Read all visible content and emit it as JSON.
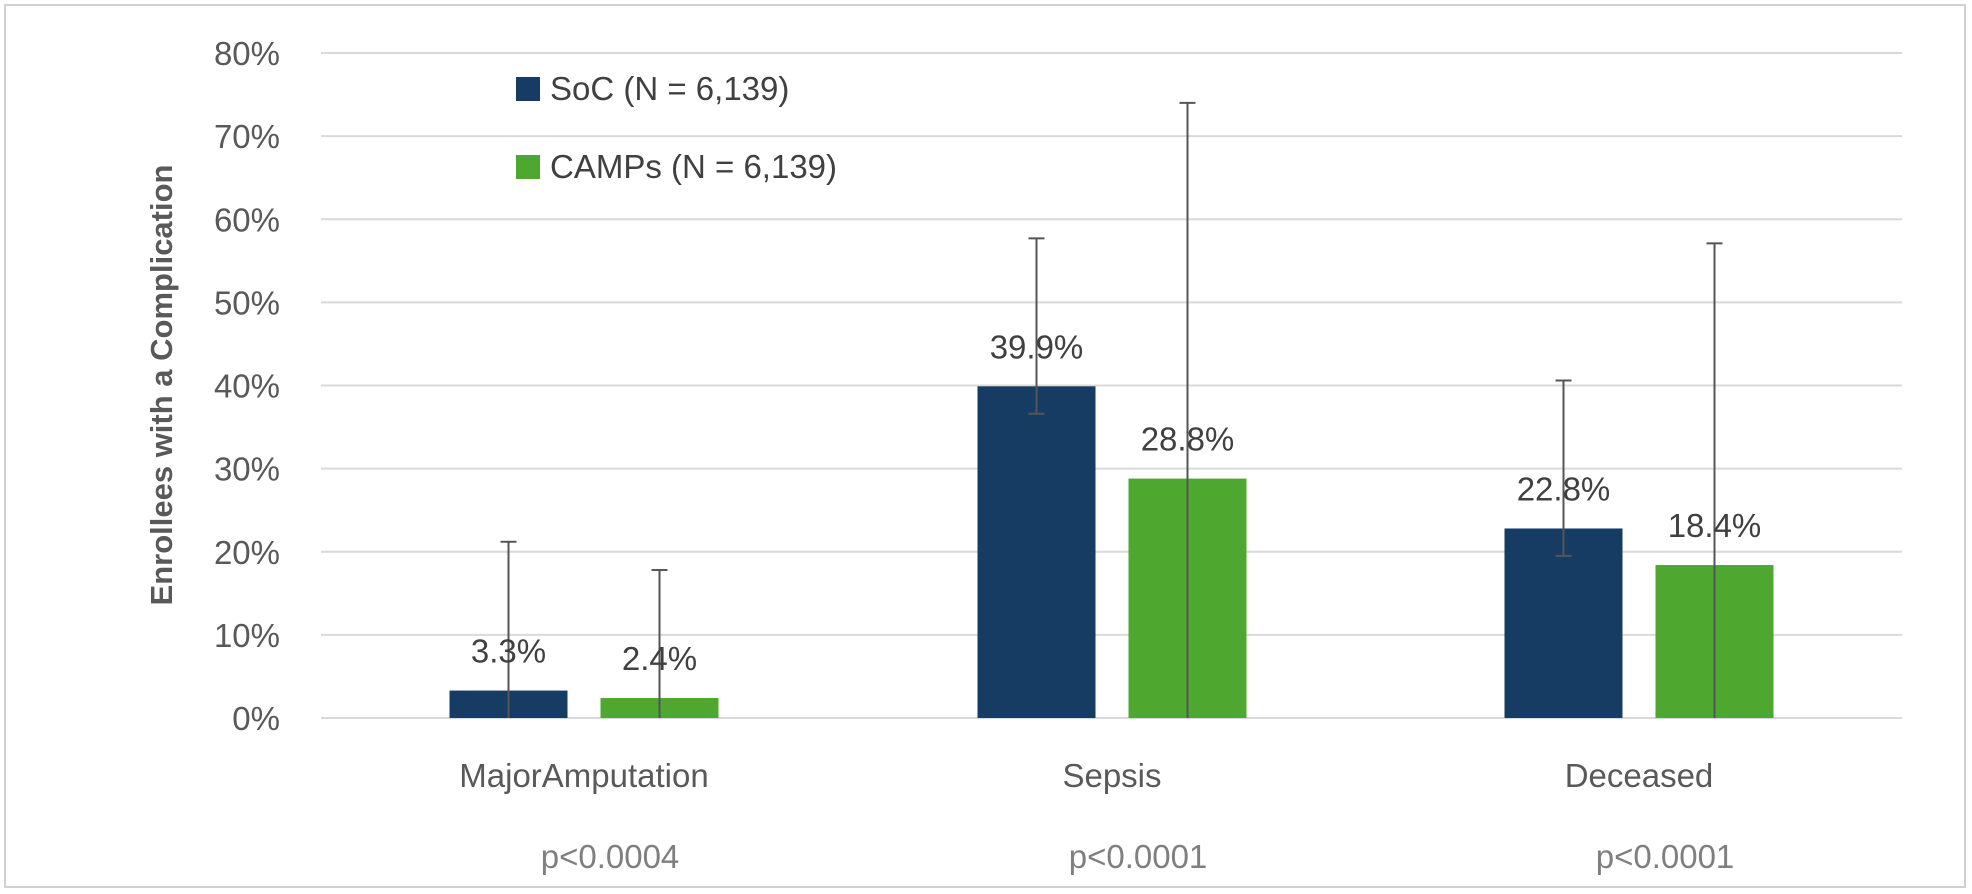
{
  "chart_data": {
    "type": "bar",
    "title": "",
    "xlabel": "",
    "ylabel": "Enrollees with a Complication",
    "ylim": [
      0,
      80
    ],
    "yticks": [
      "0%",
      "10%",
      "20%",
      "30%",
      "40%",
      "50%",
      "60%",
      "70%",
      "80%"
    ],
    "ytick_values": [
      0,
      10,
      20,
      30,
      40,
      50,
      60,
      70,
      80
    ],
    "grid": true,
    "legend_position": "top-left",
    "categories": [
      "MajorAmputation",
      "Sepsis",
      "Deceased"
    ],
    "p_values": [
      "p<0.0004",
      "p<0.0001",
      "p<0.0001"
    ],
    "series": [
      {
        "name": "SoC (N = 6,139)",
        "color": "#173c63",
        "values": [
          3.3,
          39.9,
          22.8
        ],
        "labels": [
          "3.3%",
          "39.9%",
          "22.8%"
        ],
        "error_upper": [
          21.2,
          57.7,
          40.6
        ],
        "error_lower": [
          0,
          36.6,
          19.5
        ]
      },
      {
        "name": "CAMPs (N = 6,139)",
        "color": "#4ea72e",
        "values": [
          2.4,
          28.8,
          18.4
        ],
        "labels": [
          "2.4%",
          "28.8%",
          "18.4%"
        ],
        "error_upper": [
          17.8,
          74.0,
          57.1
        ],
        "error_lower": [
          0,
          0,
          0
        ]
      }
    ]
  }
}
